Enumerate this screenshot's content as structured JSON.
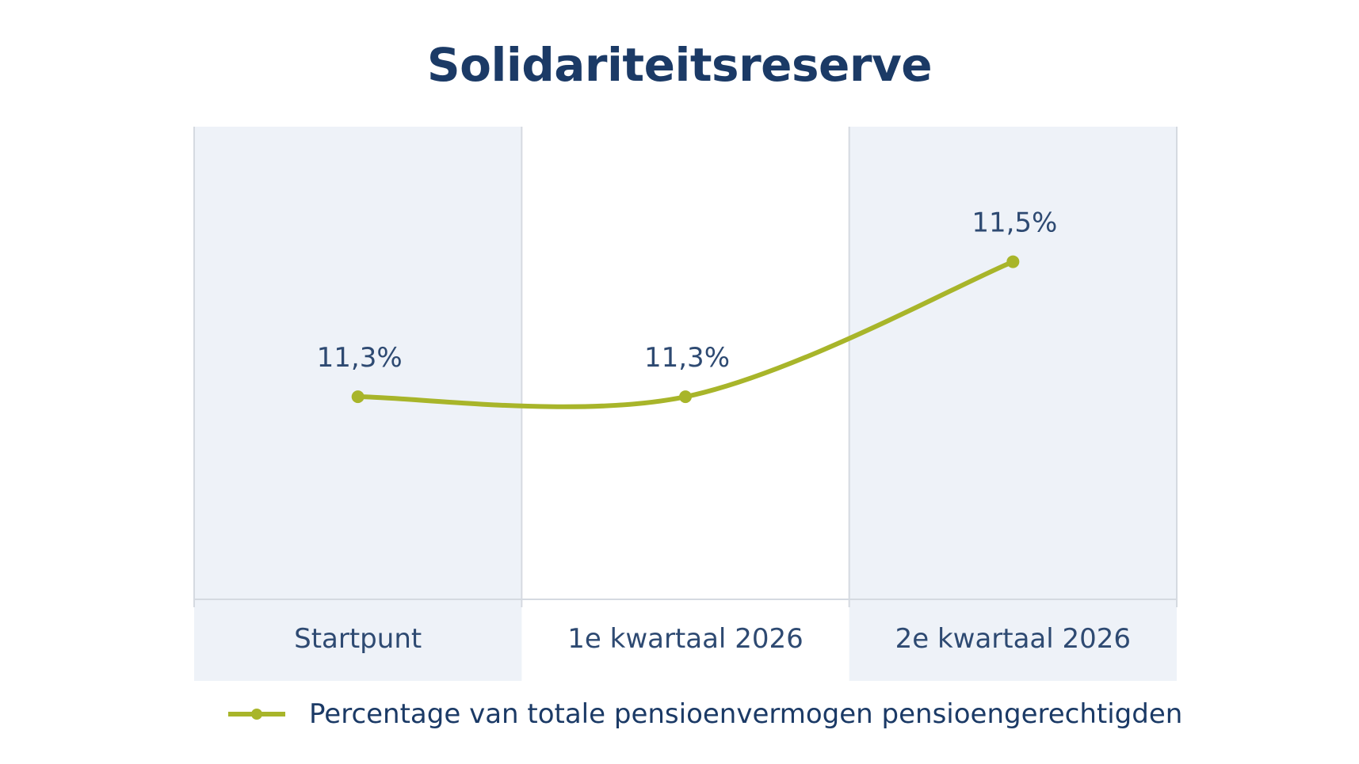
{
  "chart_data": {
    "type": "line",
    "title": "Solidariteitsreserve",
    "categories": [
      "Startpunt",
      "1e kwartaal 2026",
      "2e kwartaal 2026"
    ],
    "series": [
      {
        "name": "Percentage van totale pensioenvermogen pensioengerechtigden",
        "values": [
          11.3,
          11.3,
          11.5
        ],
        "data_labels": [
          "11,3%",
          "11,3%",
          "11,5%"
        ],
        "color": "#a8b52a",
        "smooth": true
      }
    ],
    "xlabel": "",
    "ylabel": "",
    "grid": false,
    "legend": "bottom",
    "colors": {
      "title": "#1b3a66",
      "text": "#2e4a72",
      "band": "#eef2f8",
      "divider": "#d5dae1",
      "line": "#a8b52a"
    }
  }
}
